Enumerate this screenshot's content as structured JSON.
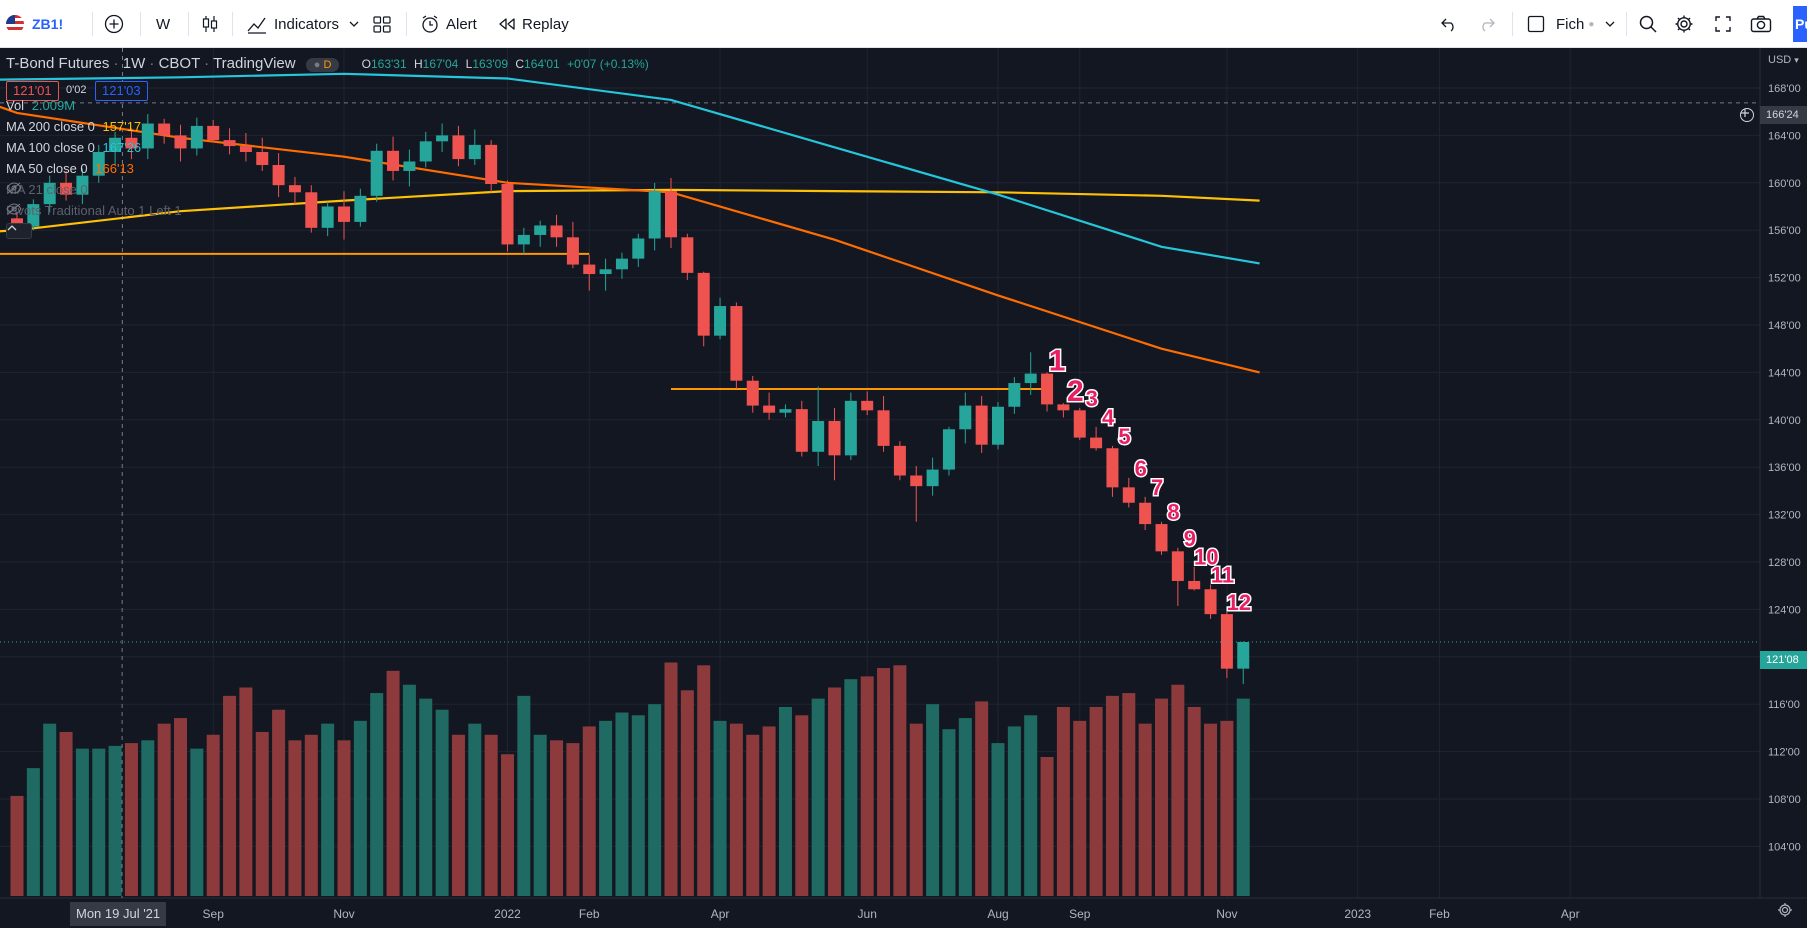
{
  "toolbar": {
    "symbol": "ZB1!",
    "interval": "W",
    "indicators_label": "Indicators",
    "alert_label": "Alert",
    "replay_label": "Replay",
    "layout_label": "Fich",
    "publish_label": "Pu"
  },
  "legend": {
    "title": "T-Bond Futures",
    "interval": "1W",
    "exchange": "CBOT",
    "source": "TradingView",
    "badge": "D",
    "ohlc": {
      "o_label": "O",
      "o": "163'31",
      "h_label": "H",
      "h": "167'04",
      "l_label": "L",
      "l": "163'09",
      "c_label": "C",
      "c": "164'01",
      "change": "+0'07 (+0.13%)"
    },
    "bid": "121'01",
    "spread": "0'02",
    "ask": "121'03",
    "vol_label": "Vol",
    "vol_value": "2.009M",
    "ma200_label": "MA 200 close 0",
    "ma200_value": "157'17",
    "ma100_label": "MA 100 close 0",
    "ma100_value": "167'26",
    "ma50_label": "MA 50 close 0",
    "ma50_value": "166'13",
    "ma21_label": "MA 21 close 0",
    "pivots_label": "Pivots Traditional Auto 1 Left 1",
    "colors": {
      "up": "#26a69a",
      "down": "#ef5350",
      "ma200": "#ffc107",
      "ma100": "#26c6da",
      "ma50": "#ff6d00"
    }
  },
  "crosshair_date": "Mon 19 Jul '21",
  "crosshair_price": "166'24",
  "last_price": "121'08",
  "chart_data": {
    "type": "candlestick",
    "title": "T-Bond Futures 1W CBOT",
    "y_ticks": [
      "168'00",
      "164'00",
      "160'00",
      "156'00",
      "152'00",
      "148'00",
      "144'00",
      "140'00",
      "136'00",
      "132'00",
      "128'00",
      "124'00",
      "120'00",
      "116'00",
      "112'00",
      "108'00",
      "104'00"
    ],
    "y_currency": "USD",
    "ylim": [
      102,
      170
    ],
    "x_ticks": [
      {
        "label": "Jun",
        "i": -6
      },
      {
        "label": "Sep",
        "i": 12
      },
      {
        "label": "Nov",
        "i": 20
      },
      {
        "label": "2022",
        "i": 30
      },
      {
        "label": "Feb",
        "i": 35
      },
      {
        "label": "Apr",
        "i": 43
      },
      {
        "label": "Jun",
        "i": 52
      },
      {
        "label": "Aug",
        "i": 60
      },
      {
        "label": "Sep",
        "i": 65
      },
      {
        "label": "Nov",
        "i": 74
      },
      {
        "label": "2023",
        "i": 82
      },
      {
        "label": "Feb",
        "i": 87
      },
      {
        "label": "Apr",
        "i": 95
      }
    ],
    "candles": [
      [
        157.0,
        157.5,
        155.8,
        156.3
      ],
      [
        156.3,
        158.6,
        156.0,
        158.2
      ],
      [
        158.2,
        160.6,
        157.5,
        160.0
      ],
      [
        160.0,
        161.0,
        158.5,
        159.0
      ],
      [
        159.0,
        161.2,
        158.2,
        160.6
      ],
      [
        160.6,
        163.2,
        160.0,
        162.6
      ],
      [
        162.6,
        164.3,
        161.5,
        163.8
      ],
      [
        163.8,
        164.6,
        162.0,
        162.9
      ],
      [
        162.9,
        165.8,
        162.0,
        165.0
      ],
      [
        165.0,
        165.4,
        163.3,
        164.0
      ],
      [
        164.0,
        164.9,
        161.8,
        162.9
      ],
      [
        162.9,
        165.5,
        162.3,
        164.8
      ],
      [
        164.8,
        165.3,
        163.4,
        163.6
      ],
      [
        163.6,
        164.6,
        162.4,
        163.1
      ],
      [
        163.1,
        164.2,
        161.8,
        162.6
      ],
      [
        162.6,
        163.8,
        161.0,
        161.5
      ],
      [
        161.5,
        162.5,
        158.8,
        159.8
      ],
      [
        159.8,
        160.5,
        158.2,
        159.2
      ],
      [
        159.2,
        159.8,
        155.8,
        156.2
      ],
      [
        156.2,
        158.4,
        155.5,
        158.0
      ],
      [
        158.0,
        159.3,
        155.2,
        156.7
      ],
      [
        156.7,
        159.5,
        156.3,
        158.9
      ],
      [
        158.9,
        163.3,
        158.4,
        162.7
      ],
      [
        162.7,
        163.9,
        160.2,
        161.0
      ],
      [
        161.0,
        162.8,
        159.7,
        161.8
      ],
      [
        161.8,
        164.3,
        161.3,
        163.5
      ],
      [
        163.5,
        165.0,
        162.6,
        164.0
      ],
      [
        164.0,
        164.8,
        161.4,
        162.0
      ],
      [
        162.0,
        164.5,
        161.5,
        163.2
      ],
      [
        163.2,
        163.6,
        159.2,
        159.9
      ],
      [
        159.9,
        160.2,
        154.2,
        154.8
      ],
      [
        154.8,
        156.2,
        154.0,
        155.6
      ],
      [
        155.6,
        156.8,
        154.6,
        156.4
      ],
      [
        156.4,
        157.3,
        154.6,
        155.4
      ],
      [
        155.4,
        156.7,
        152.8,
        153.1
      ],
      [
        153.1,
        153.9,
        150.9,
        152.3
      ],
      [
        152.3,
        153.6,
        150.9,
        152.7
      ],
      [
        152.7,
        154.1,
        151.9,
        153.6
      ],
      [
        153.6,
        155.7,
        152.9,
        155.3
      ],
      [
        155.3,
        160.0,
        154.3,
        159.3
      ],
      [
        159.3,
        160.4,
        154.5,
        155.4
      ],
      [
        155.4,
        155.7,
        151.8,
        152.4
      ],
      [
        152.4,
        152.5,
        146.2,
        147.1
      ],
      [
        147.1,
        150.3,
        146.8,
        149.6
      ],
      [
        149.6,
        149.9,
        142.6,
        143.3
      ],
      [
        143.3,
        143.7,
        140.6,
        141.2
      ],
      [
        141.2,
        142.3,
        140.0,
        140.6
      ],
      [
        140.6,
        141.3,
        140.2,
        140.9
      ],
      [
        140.9,
        141.6,
        136.9,
        137.3
      ],
      [
        137.3,
        142.8,
        136.1,
        139.9
      ],
      [
        139.9,
        141.0,
        134.9,
        137.0
      ],
      [
        137.0,
        142.3,
        136.6,
        141.6
      ],
      [
        141.6,
        142.4,
        140.4,
        140.8
      ],
      [
        140.8,
        142.0,
        137.3,
        137.8
      ],
      [
        137.8,
        138.2,
        134.9,
        135.3
      ],
      [
        135.3,
        136.1,
        131.4,
        134.4
      ],
      [
        134.4,
        136.8,
        133.6,
        135.8
      ],
      [
        135.8,
        139.4,
        135.3,
        139.2
      ],
      [
        139.2,
        142.3,
        138.0,
        141.2
      ],
      [
        141.2,
        142.0,
        137.2,
        137.9
      ],
      [
        137.9,
        141.5,
        137.5,
        141.1
      ],
      [
        141.1,
        143.6,
        140.5,
        143.1
      ],
      [
        143.1,
        145.7,
        142.1,
        143.9
      ],
      [
        143.9,
        144.0,
        140.7,
        141.3
      ],
      [
        141.3,
        141.4,
        140.2,
        140.8
      ],
      [
        140.8,
        141.0,
        138.3,
        138.5
      ],
      [
        138.5,
        139.4,
        137.4,
        137.6
      ],
      [
        137.6,
        137.8,
        133.5,
        134.3
      ],
      [
        134.3,
        135.1,
        132.6,
        133.0
      ],
      [
        133.0,
        133.5,
        130.7,
        131.2
      ],
      [
        131.2,
        131.4,
        128.6,
        128.9
      ],
      [
        128.9,
        129.2,
        124.3,
        126.4
      ],
      [
        126.4,
        127.6,
        125.6,
        125.7
      ],
      [
        125.7,
        126.1,
        123.2,
        123.6
      ],
      [
        123.6,
        123.8,
        118.2,
        119.0
      ],
      [
        119.0,
        121.3,
        117.7,
        121.25
      ]
    ],
    "candle_labels": [
      "1",
      "2",
      "3",
      "4",
      "5",
      "6",
      "7",
      "8",
      "9",
      "10",
      "11",
      "12"
    ],
    "candle_label_start_index": 63,
    "volume": [
      36,
      46,
      62,
      59,
      53,
      53,
      54,
      55,
      56,
      62,
      64,
      53,
      58,
      72,
      75,
      59,
      67,
      56,
      58,
      62,
      56,
      63,
      73,
      81,
      76,
      71,
      67,
      58,
      62,
      58,
      51,
      72,
      58,
      56,
      55,
      61,
      63,
      66,
      65,
      69,
      84,
      74,
      83,
      63,
      62,
      58,
      61,
      68,
      65,
      71,
      75,
      78,
      79,
      82,
      83,
      62,
      69,
      60,
      64,
      70,
      55,
      61,
      65,
      50,
      68,
      63,
      68,
      72,
      73,
      62,
      71,
      76,
      68,
      62,
      63,
      71
    ],
    "ma200": [
      [
        -7,
        155.4
      ],
      [
        0,
        156.0
      ],
      [
        10,
        157.6
      ],
      [
        20,
        158.5
      ],
      [
        30,
        159.3
      ],
      [
        40,
        159.4
      ],
      [
        50,
        159.3
      ],
      [
        60,
        159.2
      ],
      [
        70,
        158.9
      ],
      [
        76,
        158.5
      ]
    ],
    "ma100": [
      [
        -7,
        168.6
      ],
      [
        10,
        168.9
      ],
      [
        20,
        169.2
      ],
      [
        30,
        168.8
      ],
      [
        40,
        167.0
      ],
      [
        50,
        163.0
      ],
      [
        60,
        159.0
      ],
      [
        70,
        154.6
      ],
      [
        76,
        153.2
      ]
    ],
    "ma50": [
      [
        -7,
        169.3
      ],
      [
        0,
        165.9
      ],
      [
        10,
        163.8
      ],
      [
        20,
        162.2
      ],
      [
        30,
        160.0
      ],
      [
        40,
        159.2
      ],
      [
        50,
        155.2
      ],
      [
        60,
        150.5
      ],
      [
        70,
        146.0
      ],
      [
        76,
        144.0
      ]
    ],
    "pivot_lines": [
      {
        "price": 154.0,
        "from": -7,
        "to": 35
      },
      {
        "price": 142.6,
        "from": 40,
        "to": 63
      }
    ]
  }
}
